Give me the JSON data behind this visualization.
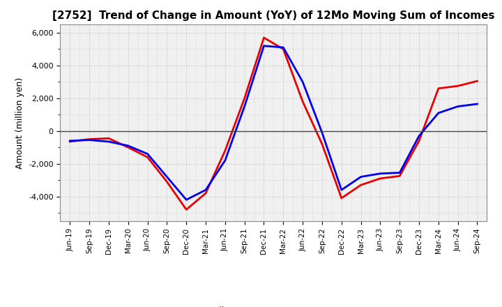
{
  "title": "[2752]  Trend of Change in Amount (YoY) of 12Mo Moving Sum of Incomes",
  "ylabel": "Amount (million yen)",
  "ylim": [
    -5500,
    6500
  ],
  "yticks": [
    -4000,
    -2000,
    0,
    2000,
    4000,
    6000
  ],
  "plot_bg_color": "#f0f0f0",
  "fig_bg_color": "#ffffff",
  "grid_color": "#bbbbbb",
  "ordinary_income_color": "#0000ee",
  "net_income_color": "#ee0000",
  "line_width": 2.0,
  "x_labels": [
    "Jun-19",
    "Sep-19",
    "Dec-19",
    "Mar-20",
    "Jun-20",
    "Sep-20",
    "Dec-20",
    "Mar-21",
    "Jun-21",
    "Sep-21",
    "Dec-21",
    "Mar-22",
    "Jun-22",
    "Sep-22",
    "Dec-22",
    "Mar-23",
    "Jun-23",
    "Sep-23",
    "Dec-23",
    "Mar-24",
    "Jun-24",
    "Sep-24"
  ],
  "ordinary_income": [
    -600,
    -550,
    -650,
    -900,
    -1400,
    -2800,
    -4200,
    -3600,
    -1800,
    1500,
    5200,
    5100,
    3000,
    -100,
    -3600,
    -2800,
    -2600,
    -2550,
    -300,
    1100,
    1500,
    1650
  ],
  "net_income": [
    -650,
    -500,
    -450,
    -1000,
    -1600,
    -3100,
    -4800,
    -3800,
    -1200,
    2000,
    5700,
    5000,
    1800,
    -800,
    -4100,
    -3300,
    -2900,
    -2750,
    -600,
    2600,
    2750,
    3050
  ]
}
